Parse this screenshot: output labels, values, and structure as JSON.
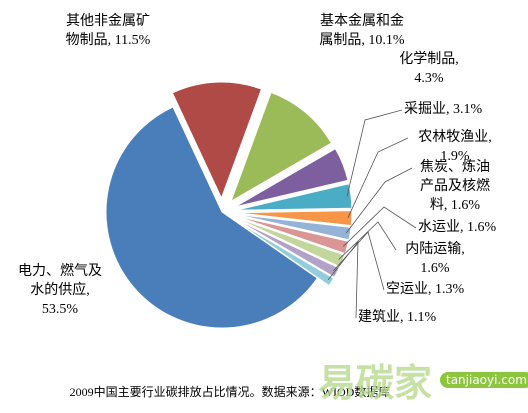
{
  "chart_data": {
    "type": "pie",
    "categories": [
      "其他非金属矿物制品",
      "基本金属和金属制品",
      "化学制品",
      "采掘业",
      "农林牧渔业",
      "焦炭、炼油产品及核燃料",
      "水运业",
      "内陆运输",
      "空运业",
      "建筑业",
      "电力、燃气及水的供应"
    ],
    "values": [
      11.5,
      10.1,
      4.3,
      3.1,
      1.9,
      1.6,
      1.6,
      1.6,
      1.3,
      1.1,
      53.5
    ],
    "value_labels": [
      "11.5%",
      "10.1%",
      "4.3%",
      "3.1%",
      "1.9%",
      "1.6%",
      "1.6%",
      "1.6%",
      "1.3%",
      "1.1%",
      "53.5%"
    ],
    "separator": ",",
    "colors": [
      "#b04a47",
      "#9bbb59",
      "#7d5fa0",
      "#4bacc6",
      "#f79646",
      "#95b3d7",
      "#d99694",
      "#c3d69b",
      "#b3a2c7",
      "#93cddd",
      "#4a7ebb"
    ],
    "caption": "2009中国主要行业碳排放占比情况。数据来源：WIOD数据库",
    "watermark": "易碳家",
    "watermark_url": "tanjiaoyi.com"
  }
}
